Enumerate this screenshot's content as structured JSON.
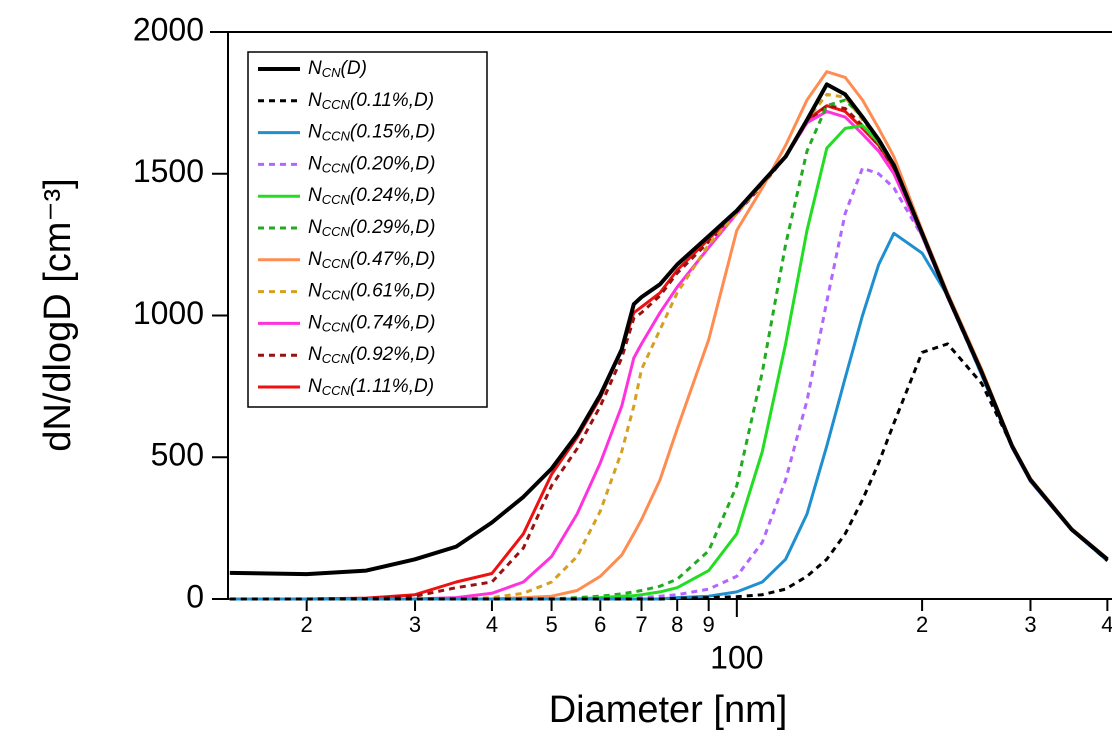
{
  "chart_data": {
    "type": "line",
    "xlabel": "Diameter [nm]",
    "ylabel": "dN/dlogD [cm⁻³]",
    "log_x": true,
    "xlim": [
      14.9,
      407
    ],
    "ylim": [
      0,
      2000
    ],
    "xticks": [
      {
        "value": 20,
        "label": "2"
      },
      {
        "value": 30,
        "label": "3"
      },
      {
        "value": 40,
        "label": "4"
      },
      {
        "value": 50,
        "label": "5"
      },
      {
        "value": 60,
        "label": "6"
      },
      {
        "value": 70,
        "label": "7"
      },
      {
        "value": 80,
        "label": "8"
      },
      {
        "value": 90,
        "label": "9"
      },
      100,
      {
        "value": 200,
        "label": "2"
      },
      {
        "value": 300,
        "label": "3"
      },
      {
        "value": 400,
        "label": "4"
      }
    ],
    "yticks": [
      0,
      500,
      1000,
      1500,
      2000
    ],
    "legend": "upper left",
    "x": [
      15,
      20,
      25,
      30,
      35,
      40,
      45,
      50,
      55,
      60,
      65,
      68,
      70,
      75,
      80,
      90,
      100,
      110,
      120,
      130,
      140,
      150,
      160,
      170,
      180,
      200,
      220,
      250,
      280,
      300,
      350,
      400
    ],
    "series": [
      {
        "name": "NCN(D)",
        "color": "#000000",
        "dash": "solid",
        "width": 4,
        "values": [
          92,
          88,
          100,
          140,
          185,
          270,
          360,
          460,
          580,
          720,
          880,
          1040,
          1065,
          1110,
          1180,
          1280,
          1370,
          1470,
          1560,
          1690,
          1815,
          1780,
          1700,
          1620,
          1530,
          1290,
          1070,
          800,
          540,
          420,
          245,
          140
        ]
      },
      {
        "name": "NCCN(0.11%,D)",
        "color": "#000000",
        "dash": "dashed",
        "width": 3,
        "values": [
          0,
          0,
          0,
          0,
          0,
          0,
          0,
          0,
          0,
          0,
          0,
          0,
          0,
          0,
          2,
          5,
          8,
          15,
          35,
          80,
          140,
          230,
          350,
          480,
          620,
          870,
          900,
          760,
          540,
          420,
          245,
          135
        ]
      },
      {
        "name": "NCCN(0.15%,D)",
        "color": "#1f8fd0",
        "dash": "solid",
        "width": 3,
        "values": [
          0,
          0,
          0,
          0,
          0,
          0,
          0,
          0,
          0,
          0,
          0,
          0,
          0,
          0,
          5,
          10,
          25,
          60,
          140,
          300,
          540,
          780,
          1000,
          1180,
          1290,
          1220,
          1070,
          790,
          535,
          415,
          243,
          135
        ]
      },
      {
        "name": "NCCN(0.20%,D)",
        "color": "#b366ff",
        "dash": "dashed",
        "width": 3,
        "values": [
          0,
          0,
          0,
          0,
          0,
          0,
          0,
          0,
          0,
          0,
          0,
          0,
          5,
          10,
          15,
          35,
          80,
          200,
          420,
          700,
          1050,
          1360,
          1520,
          1500,
          1450,
          1280,
          1065,
          790,
          535,
          415,
          243,
          135
        ]
      },
      {
        "name": "NCCN(0.24%,D)",
        "color": "#22dd22",
        "dash": "solid",
        "width": 3,
        "values": [
          0,
          0,
          0,
          0,
          0,
          0,
          0,
          0,
          0,
          5,
          10,
          12,
          15,
          25,
          40,
          100,
          230,
          520,
          900,
          1300,
          1590,
          1660,
          1670,
          1610,
          1530,
          1285,
          1068,
          795,
          538,
          418,
          244,
          138
        ]
      },
      {
        "name": "NCCN(0.29%,D)",
        "color": "#22aa22",
        "dash": "dashed",
        "width": 3,
        "values": [
          0,
          0,
          0,
          0,
          0,
          0,
          0,
          0,
          5,
          10,
          18,
          25,
          30,
          45,
          70,
          170,
          400,
          800,
          1250,
          1580,
          1740,
          1760,
          1700,
          1620,
          1530,
          1288,
          1068,
          798,
          538,
          418,
          244,
          138
        ]
      },
      {
        "name": "NCCN(0.47%,D)",
        "color": "#ff8c50",
        "dash": "solid",
        "width": 3,
        "values": [
          0,
          0,
          0,
          0,
          0,
          0,
          5,
          10,
          30,
          80,
          155,
          230,
          280,
          420,
          600,
          915,
          1300,
          1450,
          1600,
          1760,
          1860,
          1840,
          1760,
          1660,
          1560,
          1300,
          1080,
          810,
          545,
          425,
          248,
          142
        ]
      },
      {
        "name": "NCCN(0.61%,D)",
        "color": "#d4a020",
        "dash": "dashed",
        "width": 3,
        "values": [
          0,
          0,
          0,
          0,
          0,
          5,
          20,
          60,
          150,
          310,
          520,
          680,
          810,
          950,
          1080,
          1250,
          1360,
          1465,
          1560,
          1690,
          1780,
          1770,
          1690,
          1615,
          1528,
          1288,
          1068,
          798,
          538,
          418,
          244,
          138
        ]
      },
      {
        "name": "NCCN(0.74%,D)",
        "color": "#ff33dd",
        "dash": "solid",
        "width": 3,
        "values": [
          0,
          0,
          0,
          0,
          5,
          20,
          60,
          150,
          300,
          480,
          680,
          850,
          900,
          1010,
          1100,
          1240,
          1360,
          1470,
          1560,
          1680,
          1720,
          1700,
          1640,
          1580,
          1500,
          1280,
          1065,
          795,
          535,
          415,
          243,
          136
        ]
      },
      {
        "name": "NCCN(0.92%,D)",
        "color": "#991111",
        "dash": "dashed",
        "width": 3,
        "values": [
          0,
          0,
          2,
          10,
          40,
          60,
          180,
          400,
          530,
          680,
          850,
          990,
          1010,
          1070,
          1150,
          1260,
          1360,
          1460,
          1560,
          1680,
          1740,
          1730,
          1670,
          1600,
          1520,
          1283,
          1066,
          796,
          536,
          416,
          243,
          136
        ]
      },
      {
        "name": "NCCN(1.11%,D)",
        "color": "#ee1111",
        "dash": "solid",
        "width": 3,
        "values": [
          0,
          0,
          3,
          15,
          60,
          90,
          230,
          440,
          570,
          710,
          880,
          1010,
          1030,
          1080,
          1160,
          1270,
          1365,
          1465,
          1560,
          1690,
          1740,
          1720,
          1660,
          1600,
          1520,
          1285,
          1067,
          797,
          537,
          417,
          244,
          137
        ]
      }
    ]
  }
}
